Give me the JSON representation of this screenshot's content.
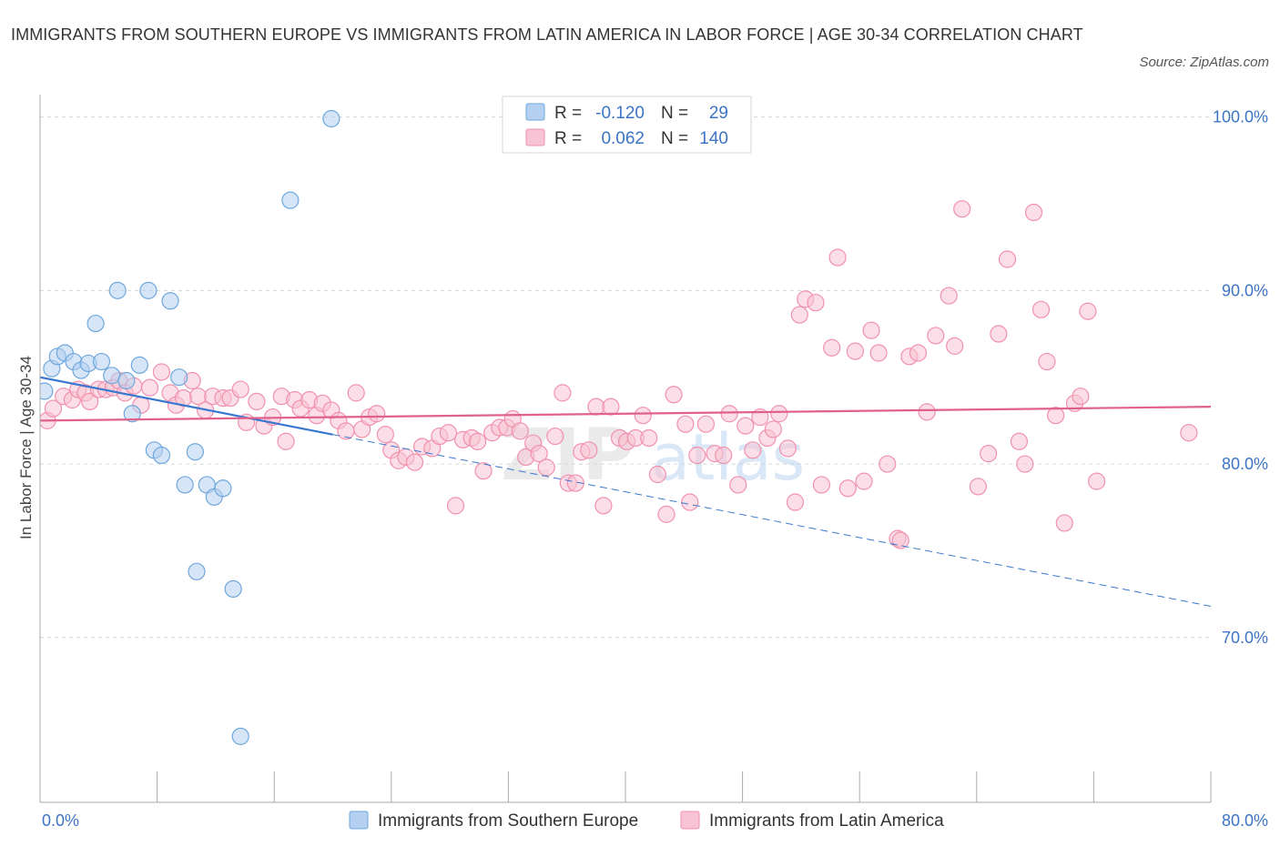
{
  "title": "IMMIGRANTS FROM SOUTHERN EUROPE VS IMMIGRANTS FROM LATIN AMERICA IN LABOR FORCE | AGE 30-34 CORRELATION CHART",
  "source": "Source: ZipAtlas.com",
  "chart_data": {
    "type": "scatter",
    "ylabel": "In Labor Force | Age 30-34",
    "xlim": [
      0,
      80
    ],
    "ylim": [
      60.5,
      101.5
    ],
    "x_tick_labels": [
      "0.0%",
      "80.0%"
    ],
    "y_ticks": [
      {
        "value": 100,
        "label": "100.0%"
      },
      {
        "value": 90,
        "label": "90.0%"
      },
      {
        "value": 80,
        "label": "80.0%"
      },
      {
        "value": 70,
        "label": "70.0%"
      }
    ],
    "grid": true,
    "legend_position": "top-center",
    "watermark": "ZIPatlas",
    "series": [
      {
        "name": "Immigrants from Southern Europe",
        "color": "#6fa8dc",
        "fill": "#b4cff0",
        "line_color": "#3a78d0",
        "R": "-0.120",
        "N": "29",
        "trend": {
          "y_at_0": 85.0,
          "y_at_80": 71.8,
          "solid_until_x": 20
        },
        "points": [
          [
            0.3,
            84.2
          ],
          [
            0.8,
            85.5
          ],
          [
            1.2,
            86.2
          ],
          [
            1.7,
            86.4
          ],
          [
            2.3,
            85.9
          ],
          [
            2.8,
            85.4
          ],
          [
            3.3,
            85.8
          ],
          [
            3.8,
            88.1
          ],
          [
            4.2,
            85.9
          ],
          [
            4.9,
            85.1
          ],
          [
            5.3,
            90.0
          ],
          [
            5.9,
            84.8
          ],
          [
            6.3,
            82.9
          ],
          [
            6.8,
            85.7
          ],
          [
            7.4,
            90.0
          ],
          [
            7.8,
            80.8
          ],
          [
            8.3,
            80.5
          ],
          [
            8.9,
            89.4
          ],
          [
            9.5,
            85.0
          ],
          [
            9.9,
            78.8
          ],
          [
            10.6,
            80.7
          ],
          [
            10.7,
            73.8
          ],
          [
            11.4,
            78.8
          ],
          [
            11.9,
            78.1
          ],
          [
            12.5,
            78.6
          ],
          [
            13.2,
            72.8
          ],
          [
            13.7,
            64.3
          ],
          [
            17.1,
            95.2
          ],
          [
            19.9,
            99.9
          ]
        ]
      },
      {
        "name": "Immigrants from Latin America",
        "color": "#f191ae",
        "fill": "#f8c3d4",
        "line_color": "#e0628c",
        "R": "0.062",
        "N": "140",
        "trend": {
          "y_at_0": 82.5,
          "y_at_80": 83.3
        },
        "points": [
          [
            0.5,
            82.5
          ],
          [
            0.9,
            83.2
          ],
          [
            1.6,
            83.9
          ],
          [
            2.2,
            83.7
          ],
          [
            2.6,
            84.3
          ],
          [
            3.1,
            84.1
          ],
          [
            3.4,
            83.6
          ],
          [
            4.0,
            84.3
          ],
          [
            4.5,
            84.3
          ],
          [
            5.0,
            84.4
          ],
          [
            5.4,
            84.8
          ],
          [
            5.8,
            84.1
          ],
          [
            6.4,
            84.5
          ],
          [
            6.9,
            83.4
          ],
          [
            7.5,
            84.4
          ],
          [
            8.3,
            85.3
          ],
          [
            8.9,
            84.1
          ],
          [
            9.3,
            83.4
          ],
          [
            9.8,
            83.8
          ],
          [
            10.4,
            84.8
          ],
          [
            10.8,
            83.9
          ],
          [
            11.3,
            83.1
          ],
          [
            11.8,
            83.9
          ],
          [
            12.5,
            83.8
          ],
          [
            13.0,
            83.8
          ],
          [
            13.7,
            84.3
          ],
          [
            14.1,
            82.4
          ],
          [
            14.8,
            83.6
          ],
          [
            15.3,
            82.2
          ],
          [
            15.9,
            82.7
          ],
          [
            16.5,
            83.9
          ],
          [
            16.8,
            81.3
          ],
          [
            17.4,
            83.7
          ],
          [
            17.8,
            83.2
          ],
          [
            18.4,
            83.7
          ],
          [
            18.9,
            82.8
          ],
          [
            19.3,
            83.5
          ],
          [
            19.9,
            83.1
          ],
          [
            20.4,
            82.5
          ],
          [
            20.9,
            81.9
          ],
          [
            21.6,
            84.1
          ],
          [
            22.0,
            82.0
          ],
          [
            22.5,
            82.7
          ],
          [
            23.0,
            82.9
          ],
          [
            23.6,
            81.7
          ],
          [
            24.0,
            80.8
          ],
          [
            24.5,
            80.2
          ],
          [
            25.0,
            80.4
          ],
          [
            25.6,
            80.1
          ],
          [
            26.1,
            81.0
          ],
          [
            26.8,
            80.9
          ],
          [
            27.3,
            81.6
          ],
          [
            27.9,
            81.8
          ],
          [
            28.4,
            77.6
          ],
          [
            28.9,
            81.4
          ],
          [
            29.5,
            81.5
          ],
          [
            29.9,
            81.3
          ],
          [
            30.3,
            79.6
          ],
          [
            30.9,
            81.8
          ],
          [
            31.4,
            82.1
          ],
          [
            31.9,
            82.1
          ],
          [
            32.3,
            82.6
          ],
          [
            32.8,
            81.9
          ],
          [
            33.2,
            80.4
          ],
          [
            33.7,
            81.2
          ],
          [
            34.1,
            80.6
          ],
          [
            34.6,
            79.8
          ],
          [
            35.2,
            81.6
          ],
          [
            35.7,
            84.1
          ],
          [
            36.1,
            78.9
          ],
          [
            36.6,
            78.9
          ],
          [
            37.0,
            80.7
          ],
          [
            37.5,
            80.8
          ],
          [
            38.0,
            83.3
          ],
          [
            38.5,
            77.6
          ],
          [
            39.0,
            83.3
          ],
          [
            39.6,
            81.5
          ],
          [
            40.1,
            81.3
          ],
          [
            40.7,
            81.5
          ],
          [
            41.2,
            82.8
          ],
          [
            41.6,
            81.5
          ],
          [
            42.2,
            79.4
          ],
          [
            42.8,
            77.1
          ],
          [
            43.3,
            84.0
          ],
          [
            44.1,
            82.3
          ],
          [
            44.4,
            77.8
          ],
          [
            44.9,
            80.5
          ],
          [
            45.5,
            82.3
          ],
          [
            46.1,
            80.6
          ],
          [
            46.7,
            80.5
          ],
          [
            47.1,
            82.9
          ],
          [
            47.7,
            78.8
          ],
          [
            48.2,
            82.2
          ],
          [
            48.7,
            80.8
          ],
          [
            49.2,
            82.7
          ],
          [
            49.7,
            81.5
          ],
          [
            50.1,
            82.0
          ],
          [
            50.5,
            82.9
          ],
          [
            51.1,
            80.9
          ],
          [
            51.6,
            77.8
          ],
          [
            51.9,
            88.6
          ],
          [
            52.3,
            89.5
          ],
          [
            53.0,
            89.3
          ],
          [
            53.4,
            78.8
          ],
          [
            54.1,
            86.7
          ],
          [
            54.5,
            91.9
          ],
          [
            55.2,
            78.6
          ],
          [
            55.7,
            86.5
          ],
          [
            56.3,
            79.0
          ],
          [
            56.8,
            87.7
          ],
          [
            57.3,
            86.4
          ],
          [
            57.9,
            80.0
          ],
          [
            58.6,
            75.7
          ],
          [
            58.8,
            75.6
          ],
          [
            59.4,
            86.2
          ],
          [
            60.0,
            86.4
          ],
          [
            60.6,
            83.0
          ],
          [
            61.2,
            87.4
          ],
          [
            62.1,
            89.7
          ],
          [
            62.5,
            86.8
          ],
          [
            63.0,
            94.7
          ],
          [
            64.1,
            78.7
          ],
          [
            64.8,
            80.6
          ],
          [
            65.5,
            87.5
          ],
          [
            66.1,
            91.8
          ],
          [
            66.9,
            81.3
          ],
          [
            67.3,
            80.0
          ],
          [
            67.9,
            94.5
          ],
          [
            68.4,
            88.9
          ],
          [
            68.8,
            85.9
          ],
          [
            69.4,
            82.8
          ],
          [
            70.0,
            76.6
          ],
          [
            70.7,
            83.5
          ],
          [
            71.1,
            83.9
          ],
          [
            71.6,
            88.8
          ],
          [
            72.2,
            79.0
          ],
          [
            78.5,
            81.8
          ]
        ]
      }
    ]
  }
}
